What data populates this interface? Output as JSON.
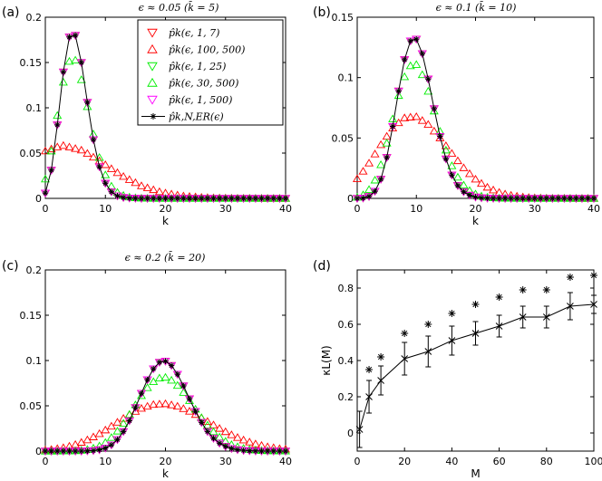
{
  "figure": {
    "panels": [
      {
        "label": "(a)",
        "title": "ϵ ≈ 0.05  (k̄ = 5)"
      },
      {
        "label": "(b)",
        "title": "ϵ ≈ 0.1  (k̄ = 10)"
      },
      {
        "label": "(c)",
        "title": "ϵ ≈ 0.2  (k̄ = 20)"
      },
      {
        "label": "(d)",
        "title": ""
      }
    ],
    "legend": [
      {
        "text": "p̂k(ϵ, 1, 7)",
        "color": "#ff0000",
        "marker": "triangle-down"
      },
      {
        "text": "p̂k(ϵ, 100, 500)",
        "color": "#ff0000",
        "marker": "triangle-up"
      },
      {
        "text": "p̂k(ϵ, 1, 25)",
        "color": "#00ee00",
        "marker": "triangle-down"
      },
      {
        "text": "p̂k(ϵ, 30, 500)",
        "color": "#00ee00",
        "marker": "triangle-up"
      },
      {
        "text": "p̂k(ϵ, 1, 500)",
        "color": "#ff00ff",
        "marker": "triangle-down"
      },
      {
        "text": "p̂k,N,ER(ϵ)",
        "color": "#000000",
        "marker": "star-line"
      }
    ]
  },
  "chart_data": [
    {
      "type": "line",
      "panel": "(a)",
      "title": "ϵ ≈ 0.05  (k̄ = 5)",
      "xlabel": "k",
      "ylabel": "",
      "xlim": [
        0,
        40
      ],
      "ylim": [
        0,
        0.2
      ],
      "xticks": [
        0,
        10,
        20,
        30,
        40
      ],
      "yticks": [
        0,
        0.05,
        0.1,
        0.15,
        0.2
      ],
      "ytick_labels": [
        "0",
        "0.05",
        "0.1",
        "0.15",
        "0.2"
      ],
      "model": "binomial",
      "mean": 5,
      "N": 100,
      "series": [
        {
          "name": "p̂k(ϵ, 1, 7)",
          "color": "#ff0000",
          "marker": "triangle-down",
          "mean": 5,
          "spread": 1
        },
        {
          "name": "p̂k(ϵ, 100, 500)",
          "color": "#ff0000",
          "marker": "triangle-up",
          "mean": 4.5,
          "spread": 3.3
        },
        {
          "name": "p̂k(ϵ, 1, 25)",
          "color": "#00ee00",
          "marker": "triangle-down",
          "mean": 5,
          "spread": 1
        },
        {
          "name": "p̂k(ϵ, 30, 500)",
          "color": "#00ee00",
          "marker": "triangle-up",
          "mean": 5,
          "spread": 1.18
        },
        {
          "name": "p̂k(ϵ, 1, 500)",
          "color": "#ff00ff",
          "marker": "triangle-down",
          "mean": 5,
          "spread": 1
        },
        {
          "name": "p̂k,N,ER(ϵ)",
          "color": "#000000",
          "marker": "star-line",
          "mean": 5,
          "spread": 1
        }
      ]
    },
    {
      "type": "line",
      "panel": "(b)",
      "title": "ϵ ≈ 0.1  (k̄ = 10)",
      "xlabel": "k",
      "ylabel": "",
      "xlim": [
        0,
        40
      ],
      "ylim": [
        0,
        0.15
      ],
      "xticks": [
        0,
        10,
        20,
        30,
        40
      ],
      "yticks": [
        0,
        0.05,
        0.1,
        0.15
      ],
      "ytick_labels": [
        "0",
        "0.05",
        "0.1",
        "0.15"
      ],
      "model": "binomial",
      "mean": 10,
      "N": 100,
      "series": [
        {
          "name": "p̂k(ϵ, 1, 7)",
          "color": "#ff0000",
          "marker": "triangle-down",
          "mean": 10,
          "spread": 1
        },
        {
          "name": "p̂k(ϵ, 100, 500)",
          "color": "#ff0000",
          "marker": "triangle-up",
          "mean": 10,
          "spread": 1.95
        },
        {
          "name": "p̂k(ϵ, 1, 25)",
          "color": "#00ee00",
          "marker": "triangle-down",
          "mean": 10,
          "spread": 1
        },
        {
          "name": "p̂k(ϵ, 30, 500)",
          "color": "#00ee00",
          "marker": "triangle-up",
          "mean": 10,
          "spread": 1.19
        },
        {
          "name": "p̂k(ϵ, 1, 500)",
          "color": "#ff00ff",
          "marker": "triangle-down",
          "mean": 10,
          "spread": 1
        },
        {
          "name": "p̂k,N,ER(ϵ)",
          "color": "#000000",
          "marker": "star-line",
          "mean": 10,
          "spread": 1
        }
      ]
    },
    {
      "type": "line",
      "panel": "(c)",
      "title": "ϵ ≈ 0.2  (k̄ = 20)",
      "xlabel": "k",
      "ylabel": "",
      "xlim": [
        0,
        40
      ],
      "ylim": [
        0,
        0.2
      ],
      "xticks": [
        0,
        10,
        20,
        30,
        40
      ],
      "yticks": [
        0,
        0.05,
        0.1,
        0.15,
        0.2
      ],
      "ytick_labels": [
        "0",
        "0.05",
        "0.1",
        "0.15",
        "0.2"
      ],
      "model": "binomial",
      "mean": 20,
      "N": 100,
      "series": [
        {
          "name": "p̂k(ϵ, 1, 7)",
          "color": "#ff0000",
          "marker": "triangle-down",
          "mean": 20,
          "spread": 1
        },
        {
          "name": "p̂k(ϵ, 100, 500)",
          "color": "#ff0000",
          "marker": "triangle-up",
          "mean": 20,
          "spread": 1.9
        },
        {
          "name": "p̂k(ϵ, 1, 25)",
          "color": "#00ee00",
          "marker": "triangle-down",
          "mean": 20,
          "spread": 1
        },
        {
          "name": "p̂k(ϵ, 30, 500)",
          "color": "#00ee00",
          "marker": "triangle-up",
          "mean": 20,
          "spread": 1.22
        },
        {
          "name": "p̂k(ϵ, 1, 500)",
          "color": "#ff00ff",
          "marker": "triangle-down",
          "mean": 20,
          "spread": 1
        },
        {
          "name": "p̂k,N,ER(ϵ)",
          "color": "#000000",
          "marker": "star-line",
          "mean": 20,
          "spread": 1
        }
      ]
    },
    {
      "type": "scatter",
      "panel": "(d)",
      "title": "",
      "xlabel": "M",
      "ylabel": "κL(M)",
      "xlim": [
        0,
        100
      ],
      "ylim": [
        -0.1,
        0.9
      ],
      "xticks": [
        0,
        20,
        40,
        60,
        80,
        100
      ],
      "yticks": [
        0,
        0.2,
        0.4,
        0.6,
        0.8
      ],
      "ytick_labels": [
        "0",
        "0.2",
        "0.4",
        "0.6",
        "0.8"
      ],
      "series": [
        {
          "name": "mean with error bars",
          "color": "#000000",
          "marker": "x-line",
          "x": [
            1,
            5,
            10,
            20,
            30,
            40,
            50,
            60,
            70,
            80,
            90,
            100
          ],
          "y": [
            0.02,
            0.2,
            0.29,
            0.41,
            0.45,
            0.51,
            0.55,
            0.59,
            0.64,
            0.64,
            0.7,
            0.71
          ],
          "err": [
            0.1,
            0.09,
            0.08,
            0.09,
            0.085,
            0.08,
            0.065,
            0.06,
            0.06,
            0.06,
            0.075,
            0.05
          ]
        },
        {
          "name": "star markers",
          "color": "#000000",
          "marker": "star",
          "x": [
            5,
            10,
            20,
            30,
            40,
            50,
            60,
            70,
            80,
            90,
            100
          ],
          "y": [
            0.35,
            0.42,
            0.55,
            0.6,
            0.66,
            0.71,
            0.75,
            0.79,
            0.79,
            0.86,
            0.87
          ]
        }
      ]
    }
  ]
}
